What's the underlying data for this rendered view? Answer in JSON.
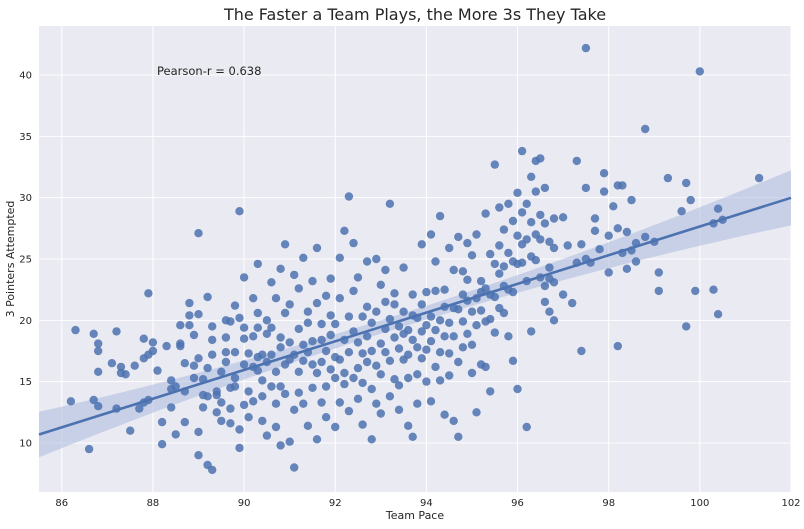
{
  "chart_data": {
    "type": "scatter",
    "title": "The Faster a Team Plays, the More 3s They Take",
    "xlabel": "Team Pace",
    "ylabel": "3 Pointers Attempted",
    "xlim": [
      85.5,
      102
    ],
    "ylim": [
      6,
      44
    ],
    "xticks": [
      86,
      88,
      90,
      92,
      94,
      96,
      98,
      100,
      102
    ],
    "yticks": [
      10,
      15,
      20,
      25,
      30,
      35,
      40
    ],
    "grid": true,
    "annotation": "Pearson-r = 0.638",
    "regression": {
      "slope": 1.17,
      "intercept": -89.35
    },
    "colors": {
      "point": "#4c72b0",
      "line": "#4c72b0",
      "band": "#aab9dc",
      "plot_bg": "#eaeaf2",
      "grid": "#ffffff",
      "text": "#262626"
    },
    "x": [],
    "y": []
  }
}
